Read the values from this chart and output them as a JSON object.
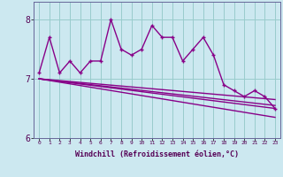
{
  "xlabel": "Windchill (Refroidissement éolien,°C)",
  "hours": [
    0,
    1,
    2,
    3,
    4,
    5,
    6,
    7,
    8,
    9,
    10,
    11,
    12,
    13,
    14,
    15,
    16,
    17,
    18,
    19,
    20,
    21,
    22,
    23
  ],
  "line1": [
    7.1,
    7.7,
    7.1,
    7.3,
    7.1,
    7.3,
    7.3,
    8.0,
    7.5,
    7.4,
    7.5,
    7.9,
    7.7,
    7.7,
    7.3,
    7.5,
    7.7,
    7.4,
    6.9,
    6.8,
    6.7,
    6.8,
    6.7,
    6.5
  ],
  "trend_lines": [
    [
      7.0,
      6.65
    ],
    [
      7.0,
      6.5
    ],
    [
      7.0,
      6.35
    ],
    [
      7.0,
      6.55
    ]
  ],
  "ylim": [
    6.0,
    8.3
  ],
  "xlim": [
    -0.5,
    23.5
  ],
  "bg_color": "#cce8f0",
  "line_color": "#880088",
  "grid_color": "#99cccc",
  "line_width": 1.0,
  "marker": "+"
}
